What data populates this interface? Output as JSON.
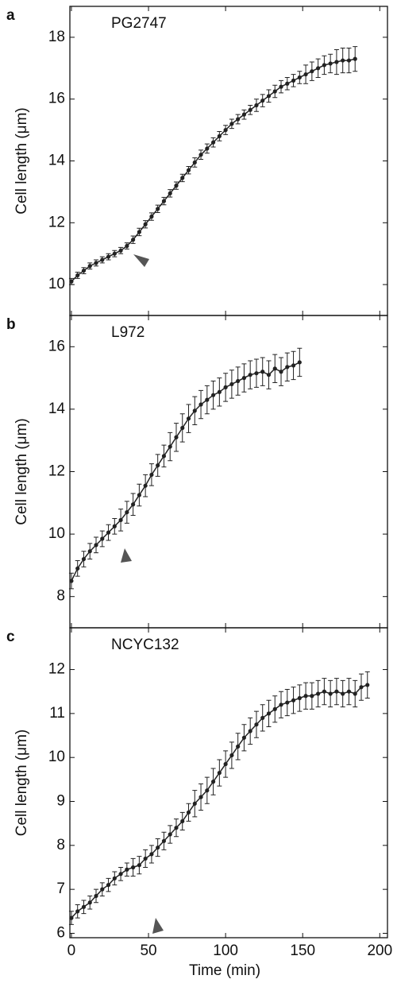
{
  "chart_data": [
    {
      "type": "line",
      "panel_label": "a",
      "title": "PG2747",
      "ylabel": "Cell length (μm)",
      "xlim": [
        -1,
        205
      ],
      "xticks": [
        0,
        50,
        100,
        150,
        200
      ],
      "ylim": [
        9,
        19
      ],
      "yticks": [
        10,
        12,
        14,
        16,
        18
      ],
      "series": [
        {
          "color": "#222222",
          "x": [
            0,
            4,
            8,
            12,
            16,
            20,
            24,
            28,
            32,
            36,
            40,
            44,
            48,
            52,
            56,
            60,
            64,
            68,
            72,
            76,
            80,
            84,
            88,
            92,
            96,
            100,
            104,
            108,
            112,
            116,
            120,
            124,
            128,
            132,
            136,
            140,
            144,
            148,
            152,
            156,
            160,
            164,
            168,
            172,
            176,
            180,
            184
          ],
          "values": [
            10.1,
            10.3,
            10.45,
            10.6,
            10.7,
            10.8,
            10.9,
            11.0,
            11.1,
            11.25,
            11.45,
            11.7,
            11.95,
            12.2,
            12.45,
            12.7,
            12.95,
            13.2,
            13.45,
            13.7,
            13.95,
            14.2,
            14.4,
            14.6,
            14.8,
            15.0,
            15.2,
            15.35,
            15.5,
            15.65,
            15.8,
            15.95,
            16.1,
            16.25,
            16.4,
            16.5,
            16.6,
            16.7,
            16.8,
            16.9,
            17.0,
            17.1,
            17.15,
            17.2,
            17.25,
            17.25,
            17.3
          ],
          "errors": [
            0.1,
            0.1,
            0.1,
            0.1,
            0.1,
            0.1,
            0.1,
            0.1,
            0.1,
            0.1,
            0.12,
            0.12,
            0.12,
            0.12,
            0.12,
            0.12,
            0.12,
            0.12,
            0.12,
            0.12,
            0.15,
            0.15,
            0.15,
            0.15,
            0.15,
            0.15,
            0.15,
            0.15,
            0.15,
            0.15,
            0.2,
            0.2,
            0.2,
            0.2,
            0.2,
            0.2,
            0.2,
            0.2,
            0.3,
            0.3,
            0.3,
            0.3,
            0.3,
            0.4,
            0.4,
            0.4,
            0.4
          ]
        }
      ]
    },
    {
      "type": "line",
      "panel_label": "b",
      "title": "L972",
      "ylabel": "Cell length (μm)",
      "xlim": [
        -1,
        205
      ],
      "xticks": [
        0,
        50,
        100,
        150,
        200
      ],
      "ylim": [
        7,
        17
      ],
      "yticks": [
        8,
        10,
        12,
        14,
        16
      ],
      "series": [
        {
          "color": "#222222",
          "x": [
            0,
            4,
            8,
            12,
            16,
            20,
            24,
            28,
            32,
            36,
            40,
            44,
            48,
            52,
            56,
            60,
            64,
            68,
            72,
            76,
            80,
            84,
            88,
            92,
            96,
            100,
            104,
            108,
            112,
            116,
            120,
            124,
            128,
            132,
            136,
            140,
            144,
            148
          ],
          "values": [
            8.5,
            8.9,
            9.2,
            9.45,
            9.65,
            9.85,
            10.05,
            10.25,
            10.45,
            10.7,
            10.95,
            11.25,
            11.55,
            11.9,
            12.2,
            12.5,
            12.8,
            13.1,
            13.4,
            13.7,
            13.95,
            14.15,
            14.3,
            14.45,
            14.55,
            14.7,
            14.8,
            14.9,
            15.0,
            15.1,
            15.15,
            15.2,
            15.1,
            15.3,
            15.2,
            15.35,
            15.4,
            15.5
          ],
          "errors": [
            0.25,
            0.25,
            0.25,
            0.25,
            0.25,
            0.25,
            0.25,
            0.25,
            0.35,
            0.35,
            0.35,
            0.35,
            0.35,
            0.35,
            0.35,
            0.35,
            0.45,
            0.45,
            0.45,
            0.45,
            0.45,
            0.45,
            0.45,
            0.45,
            0.45,
            0.45,
            0.45,
            0.45,
            0.45,
            0.45,
            0.45,
            0.45,
            0.45,
            0.45,
            0.45,
            0.45,
            0.45,
            0.45
          ]
        }
      ]
    },
    {
      "type": "line",
      "panel_label": "c",
      "title": "NCYC132",
      "ylabel": "Cell length (μm)",
      "xlabel": "Time (min)",
      "xlim": [
        -1,
        205
      ],
      "xticks": [
        0,
        50,
        100,
        150,
        200
      ],
      "ylim": [
        5.9,
        12.95
      ],
      "yticks": [
        6,
        7,
        8,
        9,
        10,
        11,
        12
      ],
      "series": [
        {
          "color": "#222222",
          "x": [
            0,
            4,
            8,
            12,
            16,
            20,
            24,
            28,
            32,
            36,
            40,
            44,
            48,
            52,
            56,
            60,
            64,
            68,
            72,
            76,
            80,
            84,
            88,
            92,
            96,
            100,
            104,
            108,
            112,
            116,
            120,
            124,
            128,
            132,
            136,
            140,
            144,
            148,
            152,
            156,
            160,
            164,
            168,
            172,
            176,
            180,
            184,
            188,
            192
          ],
          "values": [
            6.35,
            6.5,
            6.6,
            6.7,
            6.85,
            7.0,
            7.1,
            7.25,
            7.35,
            7.45,
            7.5,
            7.55,
            7.7,
            7.8,
            7.95,
            8.1,
            8.25,
            8.4,
            8.55,
            8.75,
            8.95,
            9.1,
            9.25,
            9.45,
            9.65,
            9.85,
            10.05,
            10.25,
            10.45,
            10.6,
            10.75,
            10.9,
            11.0,
            11.1,
            11.2,
            11.25,
            11.3,
            11.35,
            11.4,
            11.4,
            11.45,
            11.5,
            11.45,
            11.5,
            11.45,
            11.5,
            11.45,
            11.6,
            11.65
          ],
          "errors": [
            0.15,
            0.15,
            0.15,
            0.15,
            0.15,
            0.15,
            0.15,
            0.15,
            0.15,
            0.15,
            0.2,
            0.2,
            0.2,
            0.2,
            0.2,
            0.2,
            0.2,
            0.2,
            0.2,
            0.2,
            0.3,
            0.3,
            0.3,
            0.3,
            0.3,
            0.3,
            0.3,
            0.3,
            0.3,
            0.3,
            0.3,
            0.3,
            0.3,
            0.3,
            0.3,
            0.3,
            0.3,
            0.3,
            0.3,
            0.3,
            0.3,
            0.3,
            0.3,
            0.3,
            0.3,
            0.3,
            0.3,
            0.3,
            0.3
          ]
        }
      ]
    }
  ]
}
